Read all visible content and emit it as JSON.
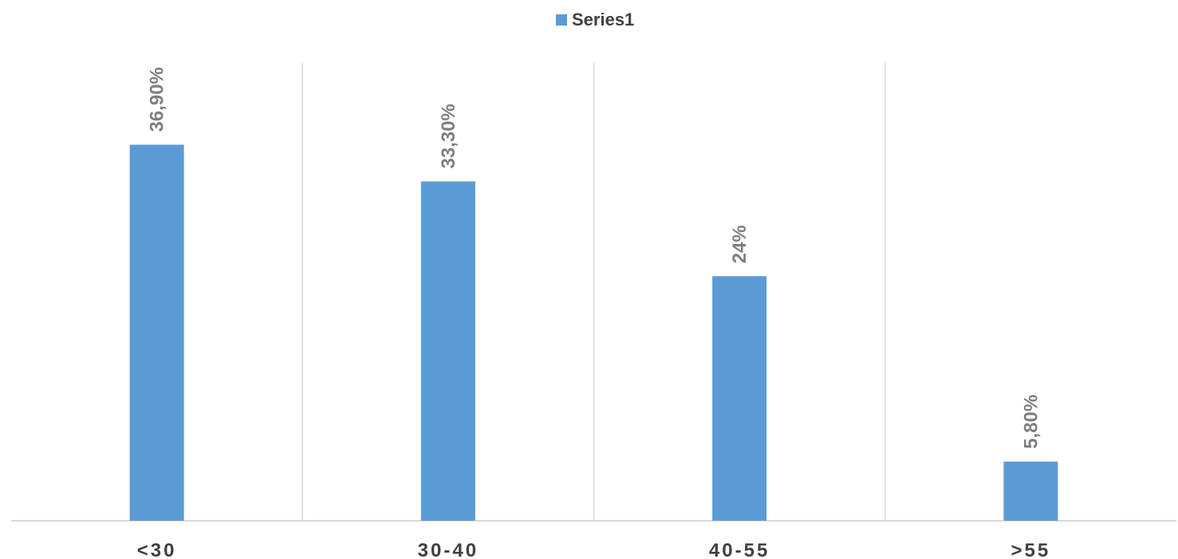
{
  "chart_data": {
    "type": "bar",
    "categories": [
      "<30",
      "30-40",
      "40-55",
      ">55"
    ],
    "series": [
      {
        "name": "Series1",
        "values": [
          36.9,
          33.3,
          24.0,
          5.8
        ],
        "labels": [
          "36,90%",
          "33,30%",
          "24%",
          "5,80%"
        ],
        "color": "#5b9bd5"
      }
    ],
    "title": "",
    "xlabel": "",
    "ylabel": "",
    "ylim": [
      0,
      45
    ],
    "grid": "vertical-category-separators",
    "legend": "top-center",
    "data_label_orientation": "vertical"
  }
}
